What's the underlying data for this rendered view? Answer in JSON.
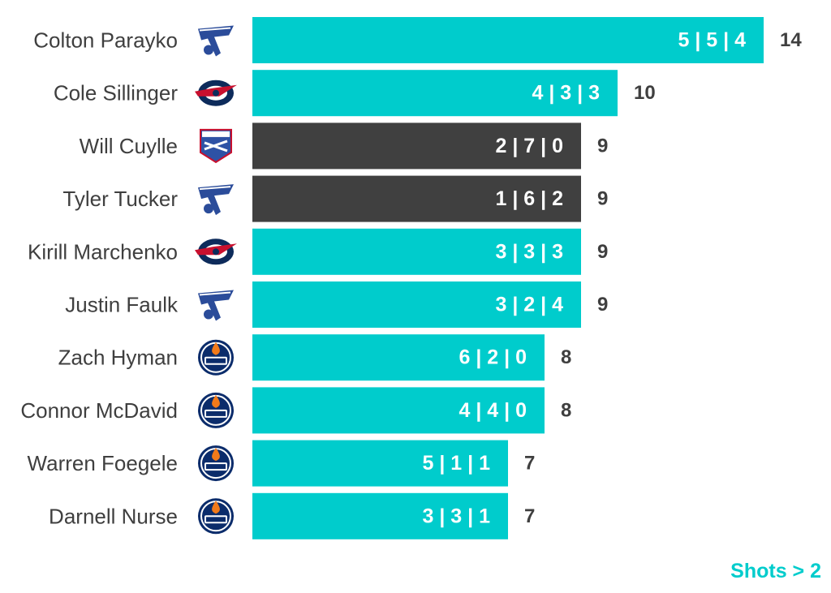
{
  "chart_data": {
    "type": "bar",
    "orientation": "horizontal",
    "categories": [
      "Colton Parayko",
      "Cole Sillinger",
      "Will Cuylle",
      "Tyler Tucker",
      "Kirill Marchenko",
      "Justin Faulk",
      "Zach Hyman",
      "Connor McDavid",
      "Warren Foegele",
      "Darnell Nurse"
    ],
    "values": [
      14,
      10,
      9,
      9,
      9,
      9,
      8,
      8,
      7,
      7
    ],
    "bar_labels": [
      "5 | 5 | 4",
      "4 | 3 | 3",
      "2 | 7 | 0",
      "1 | 6 | 2",
      "3 | 3 | 3",
      "3 | 2 | 4",
      "6 | 2 | 0",
      "4 | 4 | 0",
      "5 | 1 | 1",
      "3 | 3 | 1"
    ],
    "teams": [
      "blues",
      "blue-jackets",
      "rangers",
      "blues",
      "blue-jackets",
      "blues",
      "oilers",
      "oilers",
      "oilers",
      "oilers"
    ],
    "highlighted": [
      false,
      false,
      true,
      true,
      false,
      false,
      false,
      false,
      false,
      false
    ],
    "xlim": [
      0,
      14
    ],
    "xlabel": "",
    "ylabel": "",
    "footnote": "Shots > 2",
    "grid": false,
    "legend": "none"
  },
  "colors": {
    "bar": "#00cccc",
    "highlight": "#404040",
    "text": "#3f3f3f",
    "blues": "#2b4c9a",
    "blue_jackets": "#0d2b5b",
    "blue_jackets_red": "#c8102e",
    "rangers": "#2e52a5",
    "oilers_blue": "#0b2c6b",
    "oilers_orange": "#f27a1a"
  }
}
